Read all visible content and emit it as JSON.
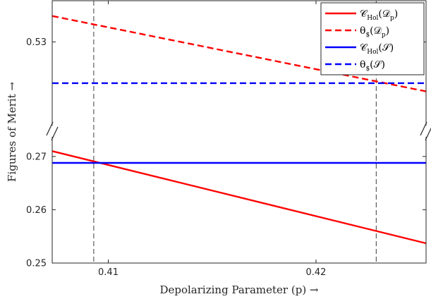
{
  "chart_data": {
    "type": "line",
    "title": "",
    "xlabel": "Depolarizing Parameter (p) →",
    "ylabel": "Figures of Merit →",
    "xlim": [
      0.4073,
      0.4253
    ],
    "xticks": [
      {
        "value": 0.41,
        "label": "0.41"
      },
      {
        "value": 0.42,
        "label": "0.42"
      }
    ],
    "broken_y_axis": true,
    "y_segments": [
      {
        "name": "upper",
        "ylim": [
          0.5235,
          0.5335
        ],
        "ticks": [
          {
            "value": 0.53,
            "label": "0.53"
          }
        ]
      },
      {
        "name": "lower",
        "ylim": [
          0.25,
          0.2725
        ],
        "ticks": [
          {
            "value": 0.25,
            "label": "0.25"
          },
          {
            "value": 0.26,
            "label": "0.26"
          },
          {
            "value": 0.27,
            "label": "0.27"
          }
        ]
      }
    ],
    "vlines": [
      0.4093,
      0.4229
    ],
    "series": [
      {
        "key": "cdp",
        "segment": "lower",
        "color": "#ff0000",
        "dash": "solid",
        "x": [
          0.4073,
          0.4253
        ],
        "y": [
          0.271,
          0.2537
        ]
      },
      {
        "key": "tdp",
        "segment": "upper",
        "color": "#ff0000",
        "dash": "dashed",
        "x": [
          0.4073,
          0.4253
        ],
        "y": [
          0.5322,
          0.5258
        ]
      },
      {
        "key": "cs",
        "segment": "lower",
        "color": "#0000ff",
        "dash": "solid",
        "x": [
          0.4073,
          0.4253
        ],
        "y": [
          0.2688,
          0.2688
        ]
      },
      {
        "key": "ts",
        "segment": "upper",
        "color": "#0000ff",
        "dash": "dashed",
        "x": [
          0.4073,
          0.4253
        ],
        "y": [
          0.5265,
          0.5265
        ]
      }
    ],
    "legend": {
      "position": "top-right",
      "entries": [
        {
          "key": "cdp",
          "main": "𝒞",
          "sub": "Hol",
          "arg": "(𝒟",
          "argsub": "p",
          "close": ")"
        },
        {
          "key": "tdp",
          "main": "θ",
          "sub": "$",
          "arg": "(𝒟",
          "argsub": "p",
          "close": ")"
        },
        {
          "key": "cs",
          "main": "𝒞",
          "sub": "Hol",
          "arg": "(𝒮",
          "argsub": "",
          "close": ")"
        },
        {
          "key": "ts",
          "main": "θ",
          "sub": "$",
          "arg": "(𝒮",
          "argsub": "",
          "close": ")"
        }
      ]
    }
  }
}
